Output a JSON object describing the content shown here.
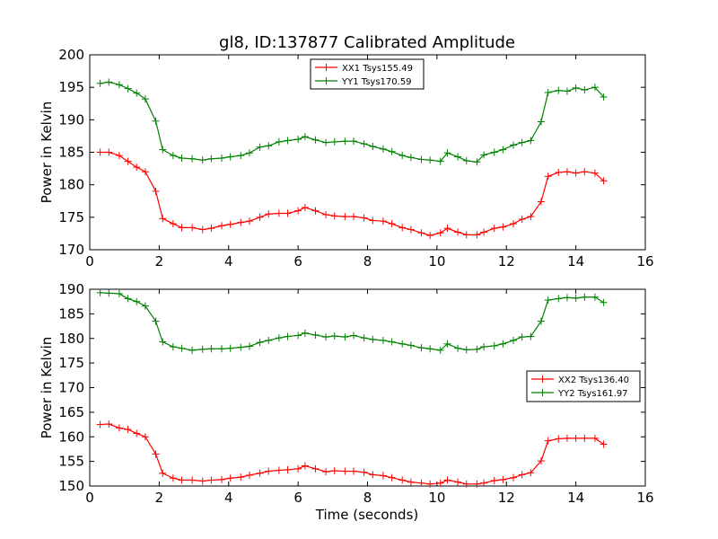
{
  "figure": {
    "title": "gl8, ID:137877 Calibrated Amplitude",
    "xlabel": "Time (seconds)",
    "colors": {
      "red": "#ff0000",
      "green": "#008000",
      "axes": "#000000",
      "background": "#ffffff"
    }
  },
  "chart_data": [
    {
      "type": "line",
      "title": "gl8, ID:137877 Calibrated Amplitude",
      "xlabel": "",
      "ylabel": "Power in Kelvin",
      "xlim": [
        0,
        16
      ],
      "ylim": [
        170,
        200
      ],
      "xticks": [
        0,
        2,
        4,
        6,
        8,
        10,
        12,
        14,
        16
      ],
      "yticks": [
        170,
        175,
        180,
        185,
        190,
        195,
        200
      ],
      "grid": false,
      "legend_position": "top-center",
      "x": [
        0.3,
        0.55,
        0.85,
        1.1,
        1.35,
        1.6,
        1.9,
        2.1,
        2.4,
        2.65,
        2.95,
        3.25,
        3.5,
        3.8,
        4.05,
        4.35,
        4.6,
        4.9,
        5.15,
        5.45,
        5.7,
        6.0,
        6.2,
        6.5,
        6.8,
        7.05,
        7.35,
        7.6,
        7.9,
        8.15,
        8.45,
        8.7,
        9.0,
        9.25,
        9.55,
        9.8,
        10.1,
        10.3,
        10.6,
        10.85,
        11.15,
        11.35,
        11.65,
        11.9,
        12.2,
        12.45,
        12.7,
        13.0,
        13.2,
        13.5,
        13.75,
        14.0,
        14.25,
        14.55,
        14.8
      ],
      "series": [
        {
          "name": "XX1 Tsys155.49",
          "color": "#ff0000",
          "marker": "+",
          "values": [
            185.0,
            185.0,
            184.5,
            183.6,
            182.7,
            182.0,
            179.0,
            174.8,
            174.0,
            173.4,
            173.4,
            173.1,
            173.3,
            173.7,
            173.9,
            174.2,
            174.4,
            175.0,
            175.5,
            175.6,
            175.6,
            176.0,
            176.5,
            176.0,
            175.4,
            175.2,
            175.1,
            175.1,
            174.9,
            174.5,
            174.4,
            174.0,
            173.4,
            173.1,
            172.6,
            172.2,
            172.6,
            173.3,
            172.7,
            172.3,
            172.3,
            172.7,
            173.3,
            173.5,
            174.0,
            174.7,
            175.1,
            177.4,
            181.3,
            181.9,
            182.0,
            181.8,
            182.0,
            181.8,
            180.6
          ]
        },
        {
          "name": "YY1 Tsys170.59",
          "color": "#008000",
          "marker": "+",
          "values": [
            195.6,
            195.8,
            195.4,
            194.8,
            194.1,
            193.2,
            189.8,
            185.4,
            184.5,
            184.1,
            184.0,
            183.8,
            184.0,
            184.1,
            184.3,
            184.5,
            184.9,
            185.8,
            186.0,
            186.6,
            186.8,
            187.0,
            187.4,
            186.9,
            186.5,
            186.6,
            186.7,
            186.7,
            186.3,
            185.9,
            185.5,
            185.1,
            184.5,
            184.2,
            183.9,
            183.8,
            183.6,
            184.9,
            184.3,
            183.7,
            183.5,
            184.6,
            185.0,
            185.4,
            186.1,
            186.5,
            186.8,
            189.7,
            194.2,
            194.5,
            194.4,
            194.9,
            194.6,
            195.0,
            193.5
          ]
        }
      ]
    },
    {
      "type": "line",
      "title": "",
      "xlabel": "Time (seconds)",
      "ylabel": "Power in Kelvin",
      "xlim": [
        0,
        16
      ],
      "ylim": [
        150,
        190
      ],
      "xticks": [
        0,
        2,
        4,
        6,
        8,
        10,
        12,
        14,
        16
      ],
      "yticks": [
        150,
        155,
        160,
        165,
        170,
        175,
        180,
        185,
        190
      ],
      "grid": false,
      "legend_position": "center-right",
      "x": [
        0.3,
        0.55,
        0.85,
        1.1,
        1.35,
        1.6,
        1.9,
        2.1,
        2.4,
        2.65,
        2.95,
        3.25,
        3.5,
        3.8,
        4.05,
        4.35,
        4.6,
        4.9,
        5.15,
        5.45,
        5.7,
        6.0,
        6.2,
        6.5,
        6.8,
        7.05,
        7.35,
        7.6,
        7.9,
        8.15,
        8.45,
        8.7,
        9.0,
        9.25,
        9.55,
        9.8,
        10.1,
        10.3,
        10.6,
        10.85,
        11.15,
        11.35,
        11.65,
        11.9,
        12.2,
        12.45,
        12.7,
        13.0,
        13.2,
        13.5,
        13.75,
        14.0,
        14.25,
        14.55,
        14.8
      ],
      "series": [
        {
          "name": "XX2 Tsys136.40",
          "color": "#ff0000",
          "marker": "+",
          "values": [
            162.5,
            162.6,
            161.8,
            161.5,
            160.7,
            160.0,
            156.5,
            152.6,
            151.6,
            151.2,
            151.2,
            151.0,
            151.2,
            151.3,
            151.6,
            151.8,
            152.2,
            152.6,
            153.0,
            153.2,
            153.3,
            153.5,
            154.1,
            153.5,
            152.9,
            153.1,
            153.0,
            153.0,
            152.8,
            152.3,
            152.1,
            151.7,
            151.2,
            150.8,
            150.6,
            150.4,
            150.6,
            151.2,
            150.8,
            150.4,
            150.4,
            150.6,
            151.1,
            151.3,
            151.7,
            152.3,
            152.7,
            155.1,
            159.2,
            159.6,
            159.7,
            159.7,
            159.7,
            159.7,
            158.5
          ]
        },
        {
          "name": "YY2 Tsys161.97",
          "color": "#008000",
          "marker": "+",
          "values": [
            189.3,
            189.2,
            189.1,
            188.1,
            187.5,
            186.6,
            183.5,
            179.3,
            178.3,
            178.0,
            177.6,
            177.8,
            177.9,
            177.9,
            178.0,
            178.2,
            178.4,
            179.2,
            179.6,
            180.1,
            180.4,
            180.6,
            181.1,
            180.7,
            180.3,
            180.5,
            180.3,
            180.6,
            180.1,
            179.8,
            179.6,
            179.3,
            178.9,
            178.6,
            178.1,
            177.9,
            177.6,
            178.9,
            178.0,
            177.7,
            177.8,
            178.3,
            178.5,
            178.9,
            179.6,
            180.3,
            180.4,
            183.5,
            187.8,
            188.1,
            188.3,
            188.2,
            188.4,
            188.4,
            187.3
          ]
        }
      ]
    }
  ]
}
